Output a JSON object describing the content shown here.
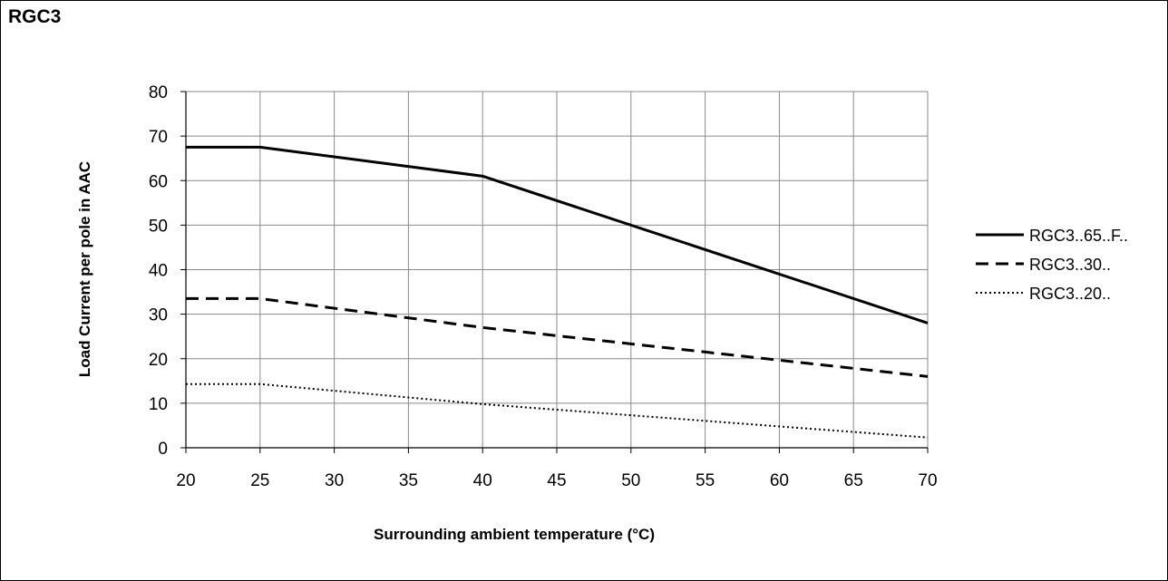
{
  "page_title": "RGC3",
  "chart_data": {
    "type": "line",
    "title": "",
    "xlabel": "Surrounding ambient temperature (°C)",
    "ylabel": "Load Current per pole in AAC",
    "xlim": [
      20,
      70
    ],
    "ylim": [
      0,
      80
    ],
    "x_ticks": [
      20,
      25,
      30,
      35,
      40,
      45,
      50,
      55,
      60,
      65,
      70
    ],
    "y_ticks": [
      0,
      10,
      20,
      30,
      40,
      50,
      60,
      70,
      80
    ],
    "grid": true,
    "legend_position": "right",
    "series": [
      {
        "name": "RGC3..65..F..",
        "style": "solid",
        "color": "#000000",
        "x": [
          20,
          25,
          40,
          70
        ],
        "y": [
          67.5,
          67.5,
          61,
          28
        ]
      },
      {
        "name": "RGC3..30..",
        "style": "dashed",
        "color": "#000000",
        "x": [
          20,
          25,
          40,
          70
        ],
        "y": [
          33.5,
          33.5,
          27,
          16
        ]
      },
      {
        "name": "RGC3..20..",
        "style": "dotted",
        "color": "#000000",
        "x": [
          20,
          25,
          40,
          70
        ],
        "y": [
          14.3,
          14.3,
          9.8,
          2.3
        ]
      }
    ]
  }
}
